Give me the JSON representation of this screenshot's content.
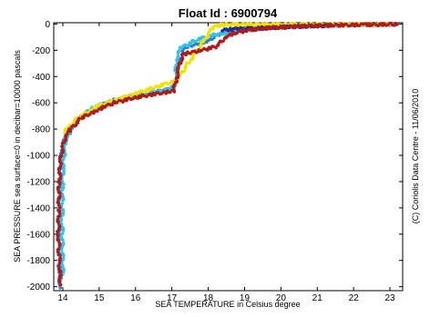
{
  "chart_data": {
    "type": "scatter",
    "title": "Float Id : 6900794",
    "xlabel": "SEA TEMPERATURE in Celsius degree",
    "ylabel": "SEA PRESSURE sea surface=0 in decibar=10000 pascals",
    "side_text": "(C) Coriolis Data Centre - 11/06/2010",
    "xlim": [
      13.75,
      23.35
    ],
    "ylim": [
      -2030,
      10
    ],
    "xticks": [
      14,
      15,
      16,
      17,
      18,
      19,
      20,
      21,
      22,
      23
    ],
    "yticks": [
      0,
      -200,
      -400,
      -600,
      -800,
      -1000,
      -1200,
      -1400,
      -1600,
      -1800,
      -2000
    ],
    "grid": false,
    "series": [
      {
        "color": "#2a7fd4",
        "values": [
          [
            13.93,
            -2000
          ],
          [
            13.92,
            -1800
          ],
          [
            13.9,
            -1600
          ],
          [
            13.9,
            -1400
          ],
          [
            13.92,
            -1200
          ],
          [
            13.96,
            -1000
          ],
          [
            14.05,
            -880
          ],
          [
            14.25,
            -780
          ],
          [
            14.55,
            -700
          ],
          [
            14.9,
            -640
          ],
          [
            15.4,
            -580
          ],
          [
            16.0,
            -545
          ],
          [
            16.6,
            -515
          ],
          [
            17.05,
            -490
          ],
          [
            17.15,
            -400
          ],
          [
            17.2,
            -300
          ],
          [
            17.35,
            -180
          ],
          [
            17.7,
            -150
          ],
          [
            18.1,
            -120
          ],
          [
            18.3,
            -70
          ],
          [
            18.8,
            -40
          ],
          [
            19.5,
            -25
          ],
          [
            20.5,
            -12
          ],
          [
            21.5,
            -6
          ],
          [
            22.5,
            -3
          ],
          [
            23.2,
            -1
          ]
        ]
      },
      {
        "color": "#33c2ea",
        "values": [
          [
            14.0,
            -1900
          ],
          [
            13.98,
            -1500
          ],
          [
            14.0,
            -1100
          ],
          [
            14.08,
            -870
          ],
          [
            14.35,
            -760
          ],
          [
            14.8,
            -640
          ],
          [
            15.3,
            -590
          ],
          [
            16.0,
            -550
          ],
          [
            16.8,
            -505
          ],
          [
            17.1,
            -470
          ],
          [
            17.12,
            -270
          ],
          [
            17.25,
            -180
          ],
          [
            17.7,
            -120
          ],
          [
            18.2,
            -80
          ],
          [
            18.9,
            -50
          ],
          [
            19.8,
            -28
          ],
          [
            20.9,
            -15
          ],
          [
            22.2,
            -5
          ],
          [
            23.2,
            -2
          ]
        ]
      },
      {
        "color": "#f2e200",
        "values": [
          [
            14.05,
            -820
          ],
          [
            14.4,
            -720
          ],
          [
            15.0,
            -620
          ],
          [
            17.12,
            -430
          ],
          [
            18.15,
            -20
          ],
          [
            18.4,
            -5
          ],
          [
            19.0,
            -3
          ],
          [
            20.0,
            -4
          ],
          [
            23.1,
            -2
          ]
        ]
      },
      {
        "color": "#1e2c8c",
        "values": [
          [
            18.4,
            -45
          ],
          [
            18.8,
            -38
          ],
          [
            19.3,
            -32
          ],
          [
            19.9,
            -26
          ],
          [
            20.6,
            -18
          ],
          [
            21.4,
            -10
          ]
        ]
      },
      {
        "color": "#b21a1a",
        "values": [
          [
            13.93,
            -1980
          ],
          [
            13.9,
            -1800
          ],
          [
            13.88,
            -1600
          ],
          [
            13.89,
            -1400
          ],
          [
            13.9,
            -1200
          ],
          [
            13.93,
            -1050
          ],
          [
            14.02,
            -900
          ],
          [
            14.2,
            -800
          ],
          [
            14.5,
            -720
          ],
          [
            14.9,
            -660
          ],
          [
            15.4,
            -600
          ],
          [
            16.0,
            -560
          ],
          [
            16.6,
            -530
          ],
          [
            17.05,
            -510
          ],
          [
            17.12,
            -420
          ],
          [
            17.2,
            -330
          ],
          [
            17.3,
            -230
          ],
          [
            17.8,
            -200
          ],
          [
            18.25,
            -170
          ],
          [
            18.5,
            -90
          ],
          [
            19.0,
            -50
          ],
          [
            19.6,
            -30
          ],
          [
            20.4,
            -18
          ],
          [
            21.3,
            -10
          ],
          [
            22.3,
            -5
          ],
          [
            23.2,
            -2
          ]
        ]
      }
    ]
  }
}
